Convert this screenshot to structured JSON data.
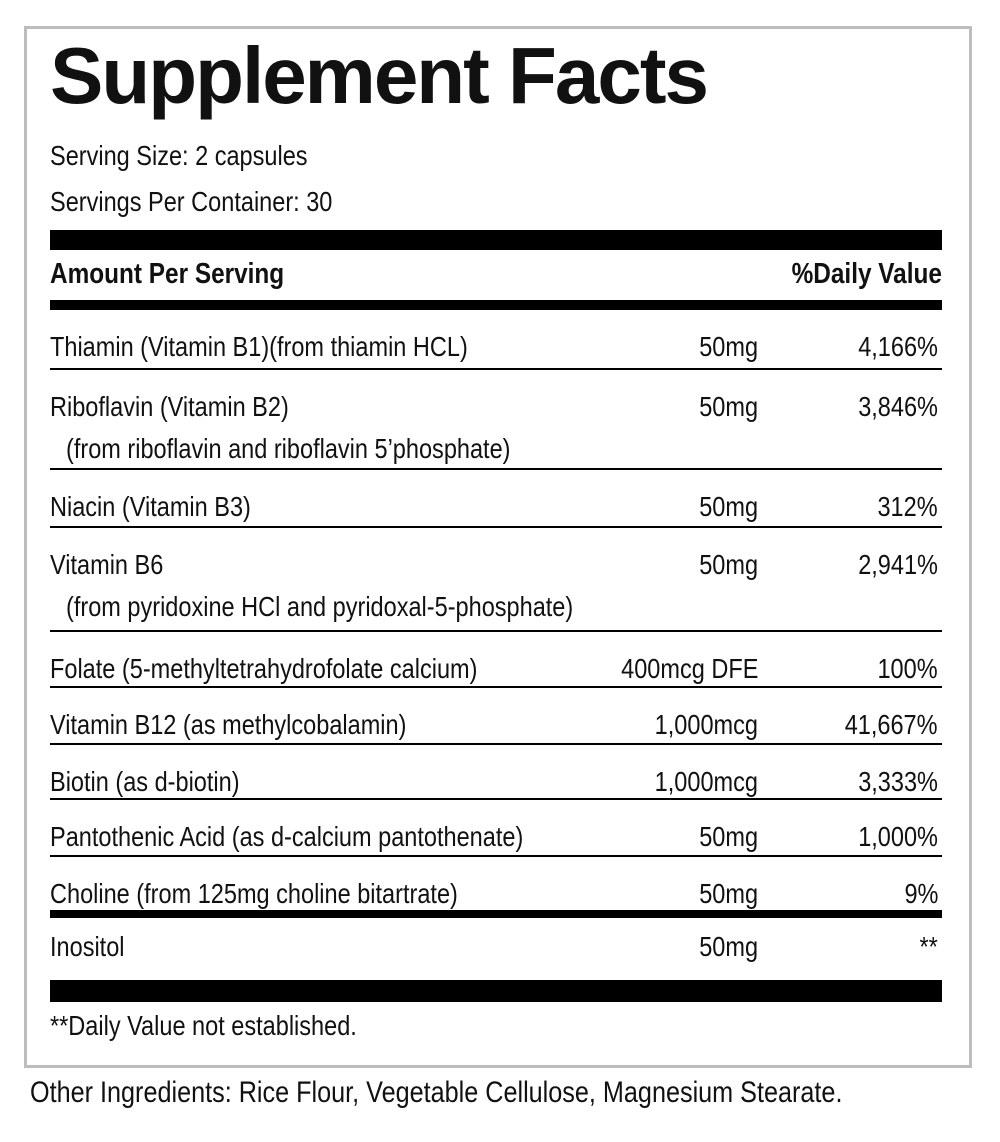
{
  "title": "Supplement Facts",
  "serving_size": "Serving Size: 2 capsules",
  "servings_per_container": "Servings Per Container: 30",
  "header": {
    "amount": "Amount Per Serving",
    "dv": "%Daily Value"
  },
  "rows": [
    {
      "name": "Thiamin (Vitamin B1)(from thiamin HCL)",
      "sub": "",
      "amount": "50mg",
      "dv": "4,166%"
    },
    {
      "name": "Riboflavin (Vitamin B2)",
      "sub": "(from riboflavin and riboflavin 5’phosphate)",
      "amount": "50mg",
      "dv": "3,846%"
    },
    {
      "name": "Niacin (Vitamin B3)",
      "sub": "",
      "amount": "50mg",
      "dv": "312%"
    },
    {
      "name": "Vitamin B6",
      "sub": "(from pyridoxine HCl and pyridoxal-5-phosphate)",
      "amount": "50mg",
      "dv": "2,941%"
    },
    {
      "name": "Folate (5-methyltetrahydrofolate calcium)",
      "sub": "",
      "amount": "400mcg DFE",
      "dv": "100%"
    },
    {
      "name": "Vitamin B12 (as methylcobalamin)",
      "sub": "",
      "amount": "1,000mcg",
      "dv": "41,667%"
    },
    {
      "name": "Biotin (as d-biotin)",
      "sub": "",
      "amount": "1,000mcg",
      "dv": "3,333%"
    },
    {
      "name": "Pantothenic Acid (as d-calcium pantothenate)",
      "sub": "",
      "amount": "50mg",
      "dv": "1,000%"
    },
    {
      "name": "Choline (from 125mg choline bitartrate)",
      "sub": "",
      "amount": "50mg",
      "dv": "9%"
    },
    {
      "name": "Inositol",
      "sub": "",
      "amount": "50mg",
      "dv": "**"
    }
  ],
  "footnote": "**Daily Value not established.",
  "other_ingredients": "Other Ingredients: Rice Flour, Vegetable Cellulose, Magnesium Stearate."
}
